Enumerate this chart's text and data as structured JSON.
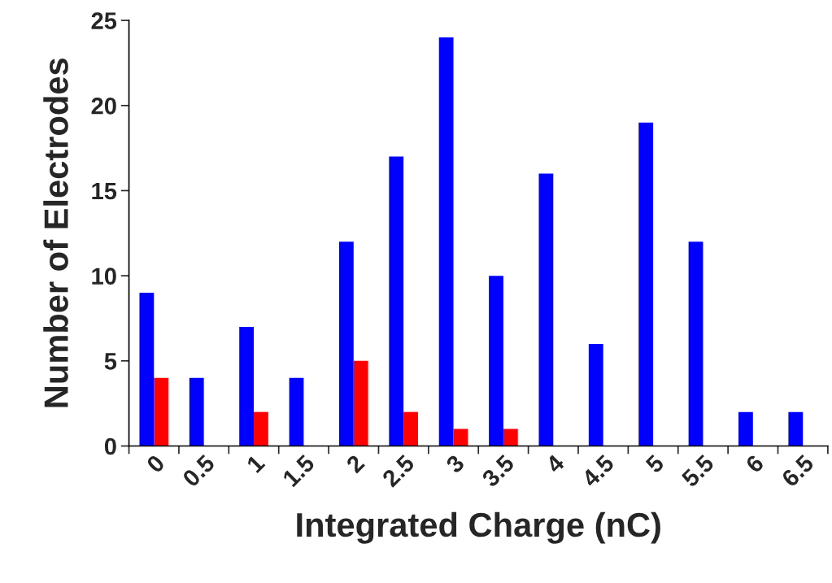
{
  "chart_data": {
    "type": "bar",
    "xlabel": "Integrated Charge (nC)",
    "ylabel": "Number of Electrodes",
    "categories": [
      "0",
      "0.5",
      "1",
      "1.5",
      "2",
      "2.5",
      "3",
      "3.5",
      "4",
      "4.5",
      "5",
      "5.5",
      "6",
      "6.5"
    ],
    "series": [
      {
        "color": "#0000ff",
        "values": [
          9,
          4,
          7,
          4,
          12,
          17,
          24,
          10,
          16,
          6,
          19,
          12,
          2,
          2
        ]
      },
      {
        "color": "#ff0000",
        "values": [
          4,
          null,
          2,
          null,
          5,
          2,
          1,
          1,
          null,
          null,
          null,
          null,
          null,
          null
        ]
      }
    ],
    "ylim": [
      0,
      25
    ],
    "yticks": [
      0,
      5,
      10,
      15,
      20,
      25
    ]
  }
}
